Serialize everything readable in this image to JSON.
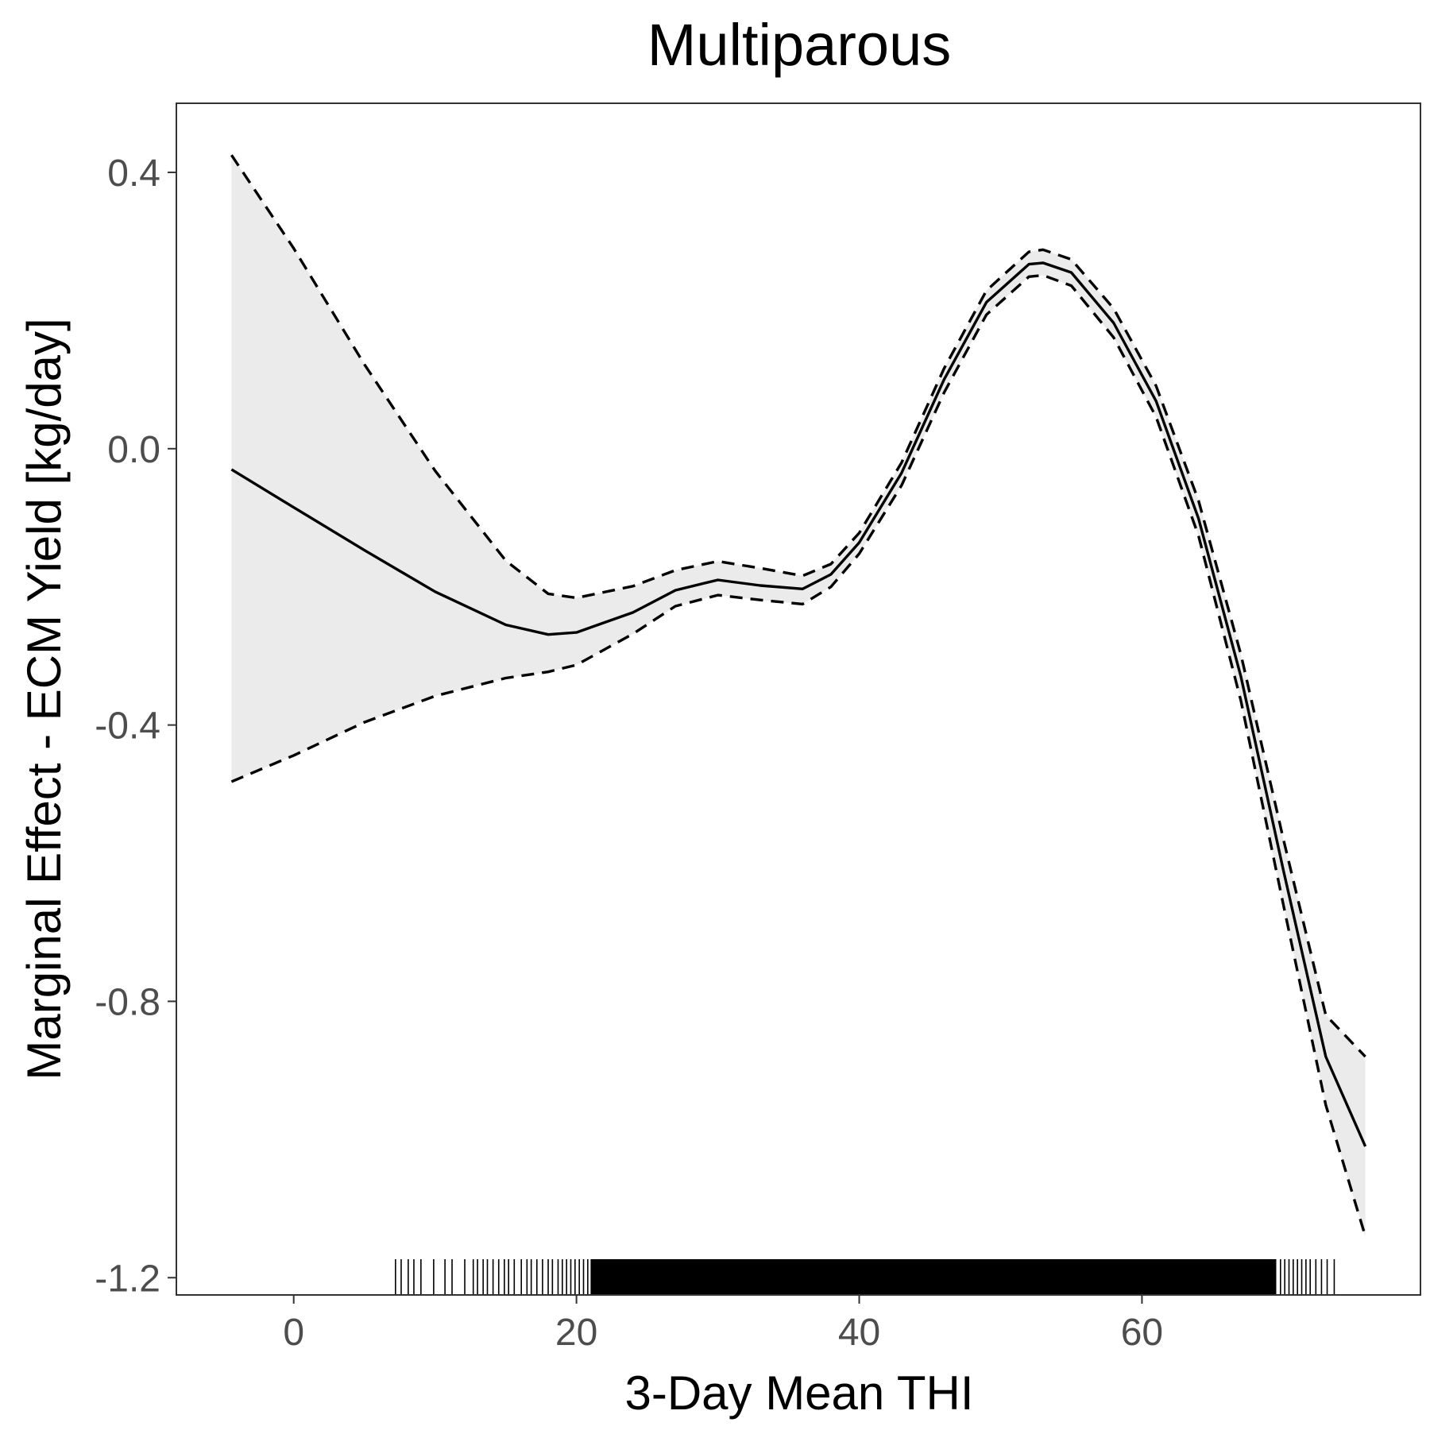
{
  "chart_data": {
    "type": "line",
    "title": "Multiparous",
    "xlabel": "3-Day Mean THI",
    "ylabel": "Marginal Effect - ECM Yield [kg/day]",
    "xlim": [
      -8.3,
      79.7
    ],
    "ylim": [
      -1.225,
      0.5
    ],
    "xticks": [
      0,
      20,
      40,
      60
    ],
    "xtick_labels": [
      "0",
      "20",
      "40",
      "60"
    ],
    "yticks": [
      0.4,
      0.0,
      -0.4,
      -0.8,
      -1.2
    ],
    "ytick_labels": [
      "0.4",
      "0.0",
      "-0.4",
      "-0.8",
      "-1.2"
    ],
    "grid": false,
    "legend": "none",
    "colors": {
      "line": "#000000",
      "band": "#ebebeb",
      "axis_text": "#4d4d4d"
    },
    "series": [
      {
        "role": "estimate",
        "style": "solid",
        "x": [
          -4.4,
          0,
          5,
          10,
          15,
          18,
          20,
          24,
          27,
          30,
          33,
          36,
          38,
          40,
          43,
          46,
          49,
          52,
          53,
          55,
          58,
          61,
          64,
          67,
          70,
          73,
          75.8
        ],
        "y": [
          -0.03,
          -0.085,
          -0.147,
          -0.207,
          -0.255,
          -0.269,
          -0.266,
          -0.237,
          -0.205,
          -0.19,
          -0.198,
          -0.203,
          -0.182,
          -0.136,
          -0.035,
          0.1,
          0.212,
          0.267,
          0.269,
          0.255,
          0.182,
          0.069,
          -0.101,
          -0.33,
          -0.61,
          -0.88,
          -1.01
        ]
      },
      {
        "role": "upper-ci",
        "style": "dashed",
        "x": [
          -4.4,
          0,
          5,
          10,
          15,
          18,
          20,
          24,
          27,
          30,
          33,
          36,
          38,
          40,
          43,
          46,
          49,
          52,
          53,
          55,
          58,
          61,
          64,
          67,
          70,
          73,
          75.8
        ],
        "y": [
          0.425,
          0.29,
          0.122,
          -0.032,
          -0.162,
          -0.21,
          -0.216,
          -0.199,
          -0.176,
          -0.163,
          -0.173,
          -0.184,
          -0.167,
          -0.122,
          -0.02,
          0.116,
          0.229,
          0.285,
          0.288,
          0.274,
          0.203,
          0.091,
          -0.075,
          -0.298,
          -0.565,
          -0.82,
          -0.88
        ]
      },
      {
        "role": "lower-ci",
        "style": "dashed",
        "x": [
          -4.4,
          0,
          5,
          10,
          15,
          18,
          20,
          24,
          27,
          30,
          33,
          36,
          38,
          40,
          43,
          46,
          49,
          52,
          53,
          55,
          58,
          61,
          64,
          67,
          70,
          73,
          75.8
        ],
        "y": [
          -0.482,
          -0.444,
          -0.396,
          -0.358,
          -0.332,
          -0.323,
          -0.313,
          -0.268,
          -0.228,
          -0.212,
          -0.219,
          -0.225,
          -0.2,
          -0.152,
          -0.053,
          0.081,
          0.194,
          0.249,
          0.251,
          0.236,
          0.161,
          0.046,
          -0.126,
          -0.365,
          -0.66,
          -0.95,
          -1.14
        ]
      }
    ],
    "rug": {
      "start": 7.2,
      "end": 73.6,
      "dense_from": 21.0,
      "dense_to": 69.5,
      "sparse_left": [
        7.2,
        7.6,
        8.1,
        8.5,
        9.0,
        9.9,
        10.7,
        11.2,
        12.1,
        12.7,
        13.0,
        13.4,
        13.7,
        14.1,
        14.5,
        14.9,
        15.2,
        15.6,
        16.1,
        16.5,
        16.8,
        17.2,
        17.6,
        18.0,
        18.3,
        18.7,
        19.0,
        19.3,
        19.6,
        19.9,
        20.2,
        20.5,
        20.8
      ],
      "sparse_right": [
        69.8,
        70.1,
        70.4,
        70.7,
        71.0,
        71.3,
        71.6,
        71.9,
        72.3,
        72.7,
        73.1,
        73.6
      ]
    }
  }
}
